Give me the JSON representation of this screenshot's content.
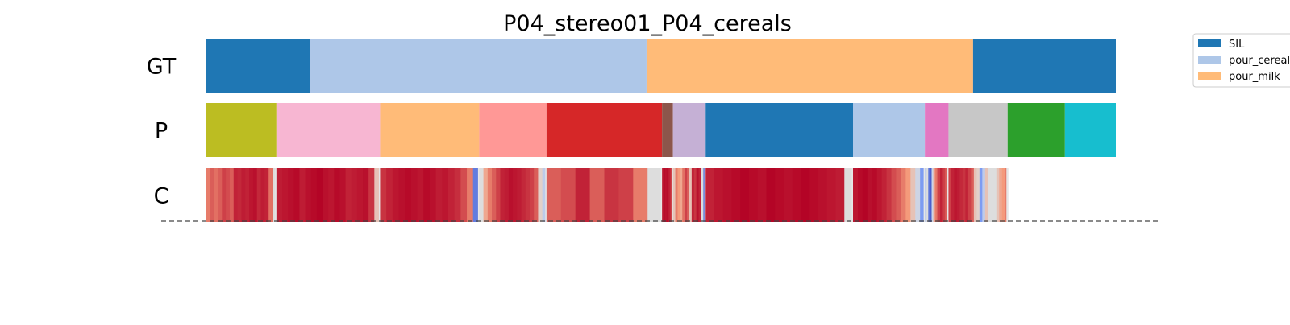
{
  "chart_data": {
    "type": "heatmap",
    "title": "P04_stereo01_P04_cereals",
    "total_frames": 1000,
    "rows": [
      {
        "label": "GT",
        "segments": [
          {
            "start": 0,
            "end": 114,
            "color": "#1f77b4"
          },
          {
            "start": 114,
            "end": 484,
            "color": "#aec7e8"
          },
          {
            "start": 484,
            "end": 843,
            "color": "#ffbb78"
          },
          {
            "start": 843,
            "end": 1000,
            "color": "#1f77b4"
          }
        ]
      },
      {
        "label": "P",
        "segments": [
          {
            "start": 0,
            "end": 77,
            "color": "#bcbd22"
          },
          {
            "start": 77,
            "end": 191,
            "color": "#f7b6d2"
          },
          {
            "start": 191,
            "end": 300,
            "color": "#ffbb78"
          },
          {
            "start": 300,
            "end": 374,
            "color": "#ff9896"
          },
          {
            "start": 374,
            "end": 501,
            "color": "#d62728"
          },
          {
            "start": 501,
            "end": 513,
            "color": "#8c564b"
          },
          {
            "start": 513,
            "end": 549,
            "color": "#c5b0d5"
          },
          {
            "start": 549,
            "end": 711,
            "color": "#1f77b4"
          },
          {
            "start": 711,
            "end": 790,
            "color": "#aec7e8"
          },
          {
            "start": 790,
            "end": 816,
            "color": "#e377c2"
          },
          {
            "start": 816,
            "end": 881,
            "color": "#c7c7c7"
          },
          {
            "start": 881,
            "end": 944,
            "color": "#2ca02c"
          },
          {
            "start": 944,
            "end": 1000,
            "color": "#17becf"
          }
        ]
      },
      {
        "label": "C",
        "colormap": "coolwarm",
        "values": [
          [
            0.8,
            0.85,
            0.82,
            0.85,
            0.9,
            0.88,
            0.85,
            0.95,
            0.94,
            0.96,
            0.95,
            0.97,
            0.98,
            0.94,
            0.96,
            0.95,
            0.82,
            0.5
          ],
          [
            0.96,
            0.97,
            0.98,
            0.99,
            0.96,
            0.98,
            0.99,
            1.0,
            0.98,
            0.97,
            0.99,
            0.98,
            0.95,
            0.96,
            0.97,
            0.98,
            0.92,
            0.6
          ],
          [
            0.92,
            0.95,
            0.97,
            0.98,
            0.99,
            0.98,
            0.97,
            0.99,
            0.98,
            0.96,
            0.97,
            0.95,
            0.93,
            0.88,
            0.8,
            0.12
          ],
          [
            0.5,
            0.7,
            0.8,
            0.85,
            0.9,
            0.95,
            0.96,
            0.98,
            0.97,
            0.96,
            0.94,
            0.92,
            0.9,
            0.85,
            0.55,
            0.4
          ],
          [
            0.85,
            0.88,
            0.95,
            0.85,
            0.92,
            0.9,
            0.8,
            0.5
          ],
          [
            0.96,
            0.97,
            0.98,
            0.99,
            0.98,
            0.97,
            0.99,
            0.98,
            0.97,
            0.96,
            0.95,
            0.93,
            0.9,
            0.85,
            0.05
          ],
          [
            0.6,
            0.8,
            0.75,
            0.7,
            0.82,
            0.9,
            0.85,
            0.6,
            0.95,
            0.92,
            0.98,
            0.95,
            0.5,
            0.1
          ],
          [
            0.95,
            0.97,
            0.98,
            0.99,
            1.0,
            0.99,
            0.98,
            1.0,
            0.99,
            0.98,
            0.99,
            1.0,
            0.99,
            0.98,
            0.97,
            0.96,
            0.5
          ],
          [
            0.97,
            0.99,
            1.0,
            0.98,
            0.99,
            0.97,
            0.95,
            0.92,
            0.88,
            0.85,
            0.8,
            0.75,
            0.6,
            0.45,
            0.2
          ],
          [
            0.4,
            0.5,
            0.1,
            0.05,
            0.45,
            0.7,
            0.8,
            0.85,
            0.9,
            0.95,
            0.92,
            0.9,
            0.85,
            0.5
          ],
          [
            0.9,
            0.95,
            0.97,
            0.96,
            0.94,
            0.92,
            0.95,
            0.9,
            0.85,
            0.6,
            0.55,
            0.2,
            0.4,
            0.6,
            0.5,
            0.5,
            0.5,
            0.6,
            0.7,
            0.75,
            0.8
          ]
        ]
      }
    ],
    "legend": [
      {
        "label": "SIL",
        "color": "#1f77b4"
      },
      {
        "label": "pour_cereals",
        "color": "#aec7e8"
      },
      {
        "label": "pour_milk",
        "color": "#ffbb78"
      }
    ],
    "legend_position": "top-right"
  }
}
